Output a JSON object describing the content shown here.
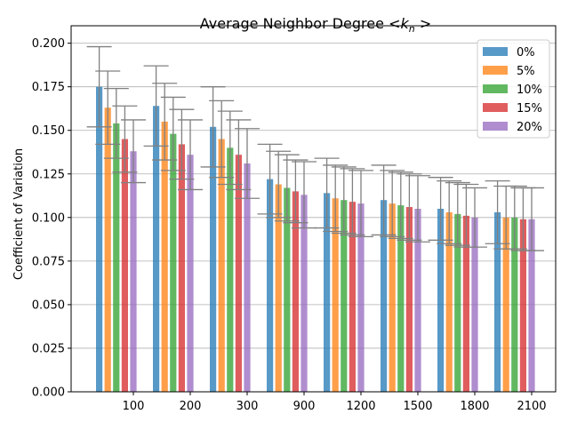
{
  "chart_data": {
    "type": "bar",
    "title_main": "Average Neighbor Degree",
    "title_math": "<k",
    "title_sub": "n",
    "title_end": ">",
    "xlabel": "",
    "ylabel": "Coefficient of Variation",
    "categories": [
      "100",
      "200",
      "300",
      "900",
      "1200",
      "1500",
      "1800",
      "2100"
    ],
    "ylim": [
      0,
      0.21
    ],
    "yticks": [
      "0.000",
      "0.025",
      "0.050",
      "0.075",
      "0.100",
      "0.125",
      "0.150",
      "0.175",
      "0.200"
    ],
    "grid": "y",
    "legend_position": "top-right",
    "series": [
      {
        "name": "0%",
        "color": "#1f77b4",
        "values": [
          0.175,
          0.164,
          0.152,
          0.122,
          0.114,
          0.11,
          0.105,
          0.103
        ],
        "errors": [
          0.023,
          0.023,
          0.023,
          0.02,
          0.02,
          0.02,
          0.018,
          0.018
        ]
      },
      {
        "name": "5%",
        "color": "#ff7f0e",
        "values": [
          0.163,
          0.155,
          0.145,
          0.119,
          0.111,
          0.108,
          0.103,
          0.1
        ],
        "errors": [
          0.021,
          0.022,
          0.022,
          0.019,
          0.019,
          0.019,
          0.018,
          0.018
        ]
      },
      {
        "name": "10%",
        "color": "#2ca02c",
        "values": [
          0.154,
          0.148,
          0.14,
          0.117,
          0.11,
          0.107,
          0.102,
          0.1
        ],
        "errors": [
          0.02,
          0.021,
          0.021,
          0.019,
          0.019,
          0.019,
          0.018,
          0.018
        ]
      },
      {
        "name": "15%",
        "color": "#d62728",
        "values": [
          0.145,
          0.142,
          0.136,
          0.115,
          0.109,
          0.106,
          0.101,
          0.099
        ],
        "errors": [
          0.019,
          0.02,
          0.02,
          0.018,
          0.019,
          0.019,
          0.018,
          0.018
        ]
      },
      {
        "name": "20%",
        "color": "#9467bd",
        "values": [
          0.138,
          0.136,
          0.131,
          0.113,
          0.108,
          0.105,
          0.1,
          0.099
        ],
        "errors": [
          0.018,
          0.02,
          0.02,
          0.019,
          0.019,
          0.019,
          0.017,
          0.018
        ]
      }
    ]
  }
}
